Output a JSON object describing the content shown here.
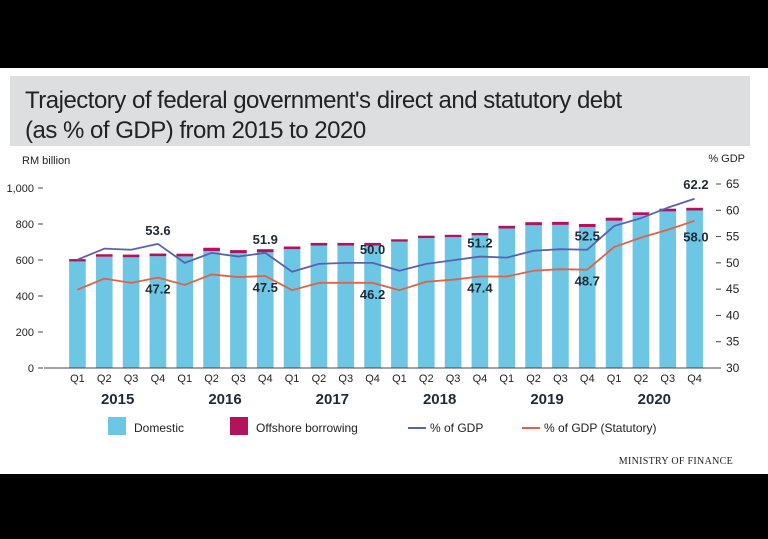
{
  "chart_data": {
    "type": "bar",
    "title": "Trajectory of federal government's direct and statutory debt (as % of GDP) from 2015 to 2020",
    "title_line1": "Trajectory of federal government's direct and statutory debt",
    "title_line2": "(as % of GDP) from 2015 to 2020",
    "ylabel_left": "RM billion",
    "ylabel_right": "% GDP",
    "ylim_left": [
      0,
      1000
    ],
    "ylim_right": [
      30,
      65
    ],
    "left_ticks": [
      "0",
      "200",
      "400",
      "600",
      "800",
      "1,000"
    ],
    "left_tick_values": [
      0,
      200,
      400,
      600,
      800,
      1000
    ],
    "right_ticks": [
      "30",
      "35",
      "40",
      "45",
      "50",
      "55",
      "60",
      "65"
    ],
    "right_tick_values": [
      30,
      35,
      40,
      45,
      50,
      55,
      60,
      65
    ],
    "categories": [
      "Q1",
      "Q2",
      "Q3",
      "Q4",
      "Q1",
      "Q2",
      "Q3",
      "Q4",
      "Q1",
      "Q2",
      "Q3",
      "Q4",
      "Q1",
      "Q2",
      "Q3",
      "Q4",
      "Q1",
      "Q2",
      "Q3",
      "Q4",
      "Q1",
      "Q2",
      "Q3",
      "Q4"
    ],
    "years": [
      "2015",
      "2016",
      "2017",
      "2018",
      "2019",
      "2020"
    ],
    "series": [
      {
        "name": "Domestic",
        "kind": "bar",
        "color": "#6cc6e4",
        "values": [
          592,
          618,
          615,
          621,
          620,
          650,
          638,
          643,
          660,
          680,
          680,
          680,
          702,
          722,
          727,
          737,
          775,
          793,
          795,
          783,
          818,
          850,
          870,
          875
        ]
      },
      {
        "name": "Offshore borrowing",
        "kind": "bar",
        "color": "#b0145a",
        "values": [
          13,
          14,
          15,
          15,
          15,
          18,
          17,
          17,
          15,
          15,
          15,
          15,
          13,
          13,
          13,
          13,
          15,
          17,
          17,
          17,
          17,
          15,
          15,
          15
        ]
      },
      {
        "name": "% of GDP",
        "kind": "line",
        "color": "#5a62b0",
        "values": [
          50.6,
          52.7,
          52.5,
          53.6,
          50.0,
          51.9,
          51.2,
          51.9,
          48.3,
          49.8,
          50.0,
          50.0,
          48.5,
          49.8,
          50.5,
          51.2,
          51.0,
          52.3,
          52.6,
          52.5,
          57.0,
          58.5,
          60.5,
          62.2
        ]
      },
      {
        "name": "% of GDP (Statutory)",
        "kind": "line",
        "color": "#e0624a",
        "values": [
          44.9,
          47.0,
          46.2,
          47.2,
          45.8,
          47.8,
          47.3,
          47.5,
          44.8,
          46.2,
          46.2,
          46.2,
          44.8,
          46.4,
          46.8,
          47.4,
          47.4,
          48.5,
          48.8,
          48.7,
          53.0,
          54.8,
          56.3,
          58.0
        ]
      }
    ],
    "annotations": [
      {
        "series": "% of GDP",
        "index": 3,
        "label": "53.6"
      },
      {
        "series": "% of GDP",
        "index": 7,
        "label": "51.9"
      },
      {
        "series": "% of GDP",
        "index": 11,
        "label": "50.0"
      },
      {
        "series": "% of GDP",
        "index": 15,
        "label": "51.2"
      },
      {
        "series": "% of GDP",
        "index": 19,
        "label": "52.5"
      },
      {
        "series": "% of GDP",
        "index": 23,
        "label": "62.2"
      },
      {
        "series": "% of GDP (Statutory)",
        "index": 3,
        "label": "47.2"
      },
      {
        "series": "% of GDP (Statutory)",
        "index": 7,
        "label": "47.5"
      },
      {
        "series": "% of GDP (Statutory)",
        "index": 11,
        "label": "46.2"
      },
      {
        "series": "% of GDP (Statutory)",
        "index": 15,
        "label": "47.4"
      },
      {
        "series": "% of GDP (Statutory)",
        "index": 19,
        "label": "48.7"
      },
      {
        "series": "% of GDP (Statutory)",
        "index": 23,
        "label": "58.0"
      }
    ],
    "legend": [
      "Domestic",
      "Offshore borrowing",
      "% of GDP",
      "% of GDP (Statutory)"
    ],
    "legend_position": "bottom",
    "grid": false
  },
  "source": "MINISTRY OF FINANCE"
}
